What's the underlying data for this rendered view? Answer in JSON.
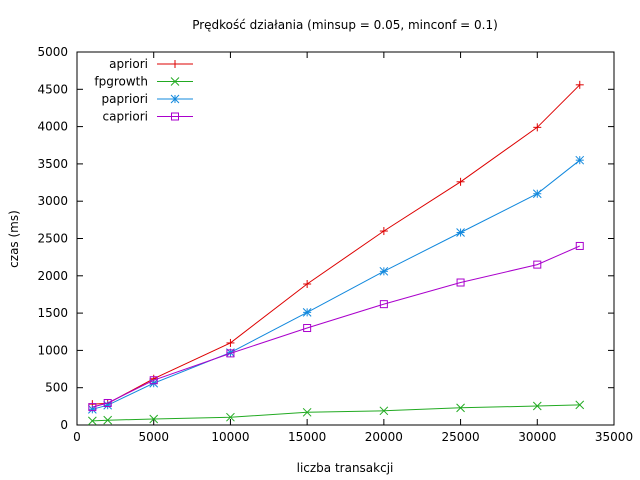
{
  "chart_data": {
    "type": "line",
    "title": "Prędkość działania (minsup = 0.05, minconf = 0.1)",
    "xlabel": "liczba transakcji",
    "ylabel": "czas (ms)",
    "xlim": [
      0,
      35000
    ],
    "ylim": [
      0,
      5000
    ],
    "xticks": [
      0,
      5000,
      10000,
      15000,
      20000,
      25000,
      30000,
      35000
    ],
    "yticks": [
      0,
      500,
      1000,
      1500,
      2000,
      2500,
      3000,
      3500,
      4000,
      4500,
      5000
    ],
    "grid": false,
    "legend_position": "top-left",
    "series": [
      {
        "name": "apriori",
        "color": "#dd0000",
        "marker": "plus",
        "x": [
          1000,
          2000,
          5000,
          10000,
          15000,
          20000,
          25000,
          30000,
          32768
        ],
        "y": [
          280,
          290,
          620,
          1100,
          1890,
          2600,
          3260,
          3990,
          4560
        ]
      },
      {
        "name": "fpgrowth",
        "color": "#22aa22",
        "marker": "cross",
        "x": [
          1000,
          2000,
          5000,
          10000,
          15000,
          20000,
          25000,
          30000,
          32768
        ],
        "y": [
          55,
          65,
          80,
          105,
          170,
          190,
          230,
          255,
          270
        ]
      },
      {
        "name": "papriori",
        "color": "#1188dd",
        "marker": "star",
        "x": [
          1000,
          2000,
          5000,
          10000,
          15000,
          20000,
          25000,
          30000,
          32768
        ],
        "y": [
          210,
          265,
          560,
          970,
          1510,
          2060,
          2580,
          3100,
          3550
        ]
      },
      {
        "name": "capriori",
        "color": "#aa00cc",
        "marker": "square",
        "x": [
          1000,
          2000,
          5000,
          10000,
          15000,
          20000,
          25000,
          30000,
          32768
        ],
        "y": [
          240,
          295,
          600,
          960,
          1300,
          1620,
          1910,
          2150,
          2400
        ]
      }
    ]
  }
}
